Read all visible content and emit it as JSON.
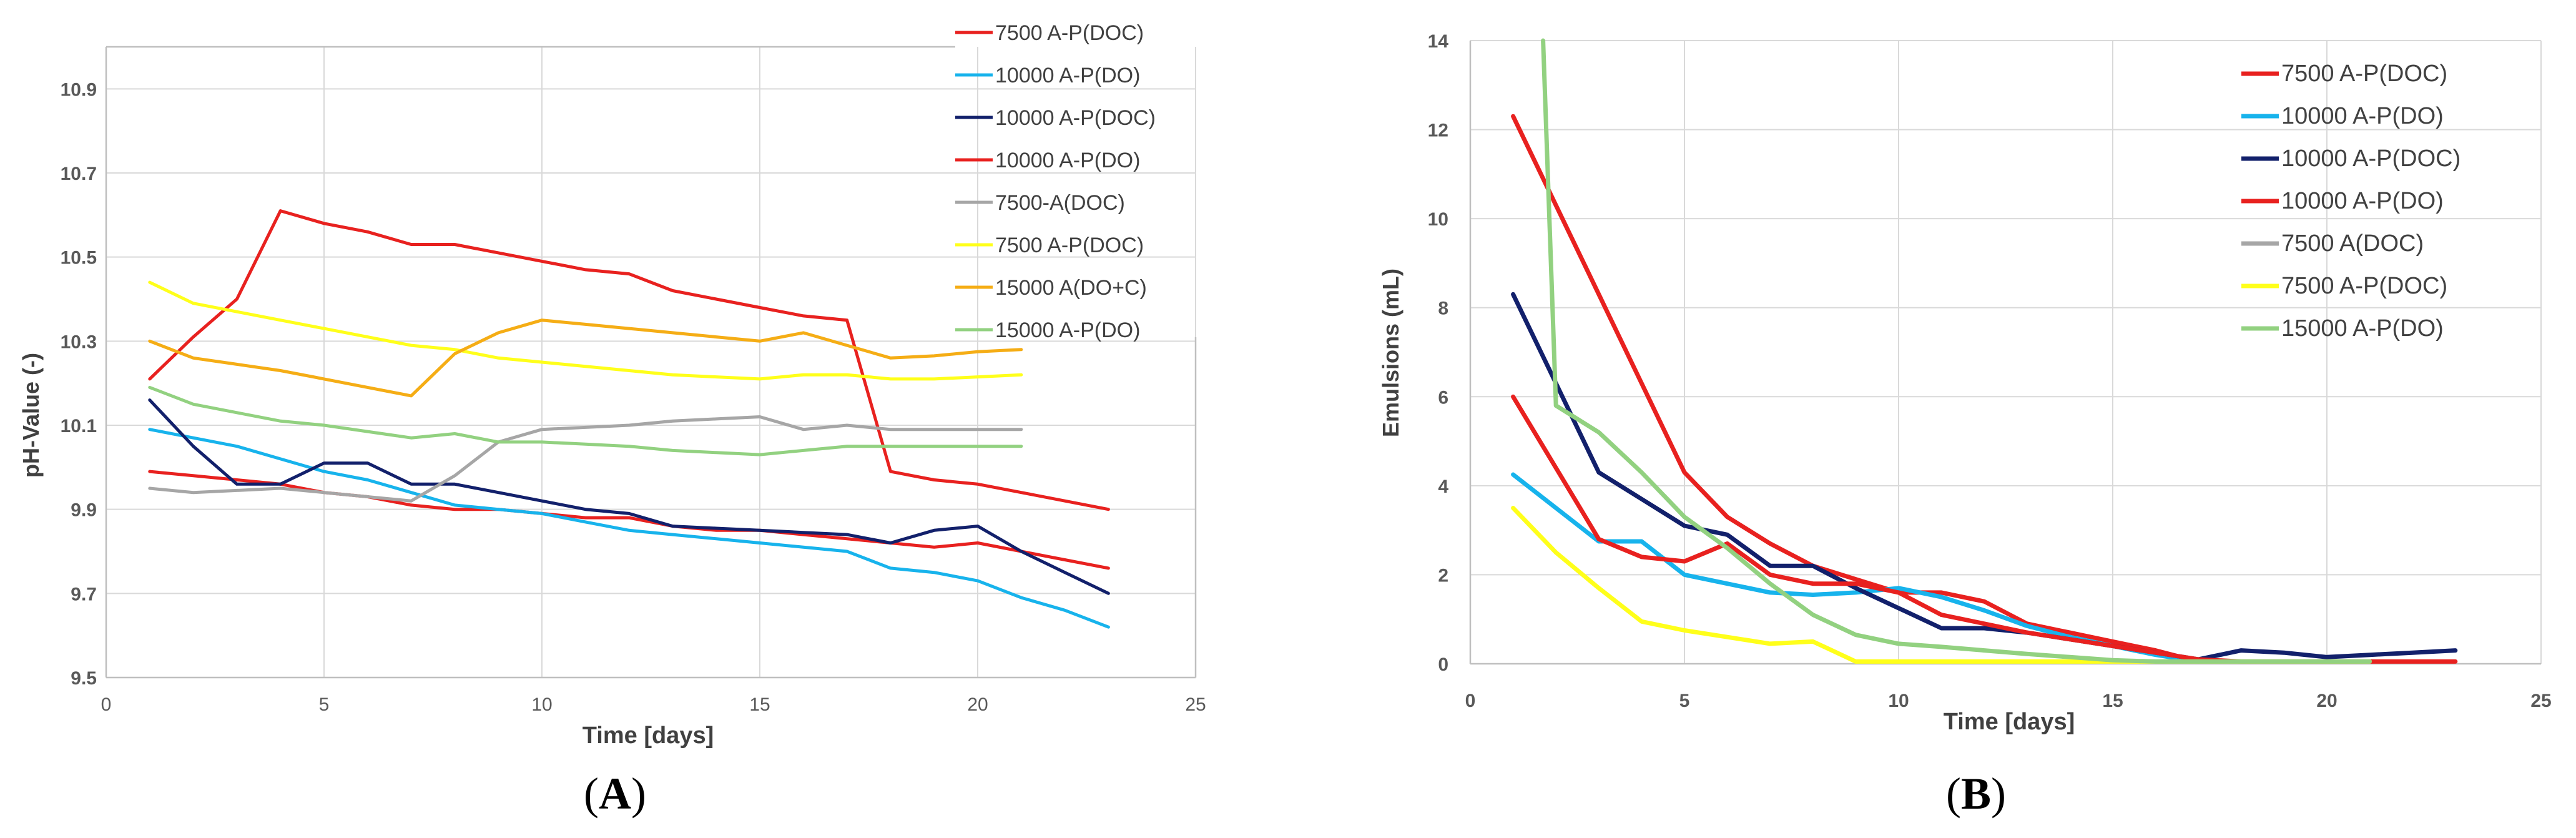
{
  "chart_data": [
    {
      "type": "line",
      "panel": "A",
      "panel_label": "A",
      "title": "",
      "xlabel": "Time [days]",
      "ylabel": "pH-Value  (-)",
      "xlim": [
        0,
        25
      ],
      "ylim": [
        9.5,
        11.0
      ],
      "x_ticks": [
        0,
        5,
        10,
        15,
        20,
        25
      ],
      "x_tick_labels": [
        "0",
        "5",
        "10",
        "15",
        "20",
        "25"
      ],
      "y_ticks": [
        9.5,
        9.7,
        9.9,
        10.1,
        10.3,
        10.5,
        10.7,
        10.9
      ],
      "y_tick_labels": [
        "9.5",
        "9.7",
        "9.9",
        "10.1",
        "10.3",
        "10.5",
        "10.7",
        "10.9"
      ],
      "grid": true,
      "legend_position": "top-right",
      "series": [
        {
          "name": "7500 A-P(DOC)",
          "color": "#e8211f",
          "x": [
            1,
            2,
            3,
            4,
            5,
            6,
            7,
            8,
            9,
            10,
            11,
            12,
            13,
            14,
            15,
            16,
            17,
            18,
            19,
            20,
            21,
            22,
            23
          ],
          "y": [
            9.99,
            9.98,
            9.97,
            9.96,
            9.94,
            9.93,
            9.91,
            9.9,
            9.9,
            9.89,
            9.88,
            9.88,
            9.86,
            9.85,
            9.85,
            9.84,
            9.83,
            9.82,
            9.81,
            9.82,
            9.8,
            9.78,
            9.76
          ]
        },
        {
          "name": "10000 A-P(DO)",
          "color": "#17b3ec",
          "x": [
            1,
            2,
            3,
            4,
            5,
            6,
            7,
            8,
            9,
            10,
            11,
            12,
            13,
            14,
            15,
            16,
            17,
            18,
            19,
            20,
            21,
            22,
            23
          ],
          "y": [
            10.09,
            10.07,
            10.05,
            10.02,
            9.99,
            9.97,
            9.94,
            9.91,
            9.9,
            9.89,
            9.87,
            9.85,
            9.84,
            9.83,
            9.82,
            9.81,
            9.8,
            9.76,
            9.75,
            9.73,
            9.69,
            9.66,
            9.62
          ]
        },
        {
          "name": "10000 A-P(DOC)",
          "color": "#12206b",
          "x": [
            1,
            2,
            3,
            4,
            5,
            6,
            7,
            8,
            9,
            10,
            11,
            12,
            13,
            14,
            15,
            16,
            17,
            18,
            19,
            20,
            21,
            22,
            23
          ],
          "y": [
            10.16,
            10.05,
            9.96,
            9.96,
            10.01,
            10.01,
            9.96,
            9.96,
            9.94,
            9.92,
            9.9,
            9.89,
            9.86,
            9.855,
            9.85,
            9.845,
            9.84,
            9.82,
            9.85,
            9.86,
            9.8,
            9.75,
            9.7
          ]
        },
        {
          "name": "10000 A-P(DO)",
          "color": "#e8211f",
          "x": [
            1,
            2,
            3,
            4,
            5,
            6,
            7,
            8,
            9,
            10,
            11,
            12,
            13,
            14,
            15,
            16,
            17,
            18,
            19,
            20,
            21,
            22,
            23
          ],
          "y": [
            10.21,
            10.31,
            10.4,
            10.61,
            10.58,
            10.56,
            10.53,
            10.53,
            10.51,
            10.49,
            10.47,
            10.46,
            10.42,
            10.4,
            10.38,
            10.36,
            10.35,
            9.99,
            9.97,
            9.96,
            9.94,
            9.92,
            9.9
          ]
        },
        {
          "name": "7500-A(DOC)",
          "color": "#a6a6a6",
          "x": [
            1,
            2,
            3,
            4,
            5,
            6,
            7,
            8,
            9,
            10,
            11,
            12,
            13,
            14,
            15,
            16,
            17,
            18,
            19,
            20,
            21
          ],
          "y": [
            9.95,
            9.94,
            9.945,
            9.95,
            9.94,
            9.93,
            9.92,
            9.98,
            10.06,
            10.09,
            10.095,
            10.1,
            10.11,
            10.115,
            10.12,
            10.09,
            10.1,
            10.09,
            10.09,
            10.09,
            10.09
          ]
        },
        {
          "name": "7500 A-P(DOC)",
          "color": "#ffff1a",
          "x": [
            1,
            2,
            3,
            4,
            5,
            6,
            7,
            8,
            9,
            10,
            11,
            12,
            13,
            14,
            15,
            16,
            17,
            18,
            19,
            20,
            21
          ],
          "y": [
            10.44,
            10.39,
            10.37,
            10.35,
            10.33,
            10.31,
            10.29,
            10.28,
            10.26,
            10.25,
            10.24,
            10.23,
            10.22,
            10.215,
            10.21,
            10.22,
            10.22,
            10.21,
            10.21,
            10.215,
            10.22
          ]
        },
        {
          "name": "15000 A(DO+C)",
          "color": "#f5ad15",
          "x": [
            1,
            2,
            3,
            4,
            5,
            6,
            7,
            8,
            9,
            10,
            11,
            12,
            13,
            14,
            15,
            16,
            17,
            18,
            19,
            20,
            21
          ],
          "y": [
            10.3,
            10.26,
            10.245,
            10.23,
            10.21,
            10.19,
            10.17,
            10.27,
            10.32,
            10.35,
            10.34,
            10.33,
            10.32,
            10.31,
            10.3,
            10.32,
            10.29,
            10.26,
            10.265,
            10.275,
            10.28
          ]
        },
        {
          "name": "15000 A-P(DO)",
          "color": "#92d180",
          "x": [
            1,
            2,
            3,
            4,
            5,
            6,
            7,
            8,
            9,
            10,
            11,
            12,
            13,
            14,
            15,
            16,
            17,
            18,
            19,
            20,
            21
          ],
          "y": [
            10.19,
            10.15,
            10.13,
            10.11,
            10.1,
            10.085,
            10.07,
            10.08,
            10.06,
            10.06,
            10.055,
            10.05,
            10.04,
            10.035,
            10.03,
            10.04,
            10.05,
            10.05,
            10.05,
            10.05,
            10.05
          ]
        }
      ]
    },
    {
      "type": "line",
      "panel": "B",
      "panel_label": "B",
      "title": "",
      "xlabel": "Time [days]",
      "ylabel": "Emulsions (mL)",
      "xlim": [
        0,
        25
      ],
      "ylim": [
        0,
        14
      ],
      "x_ticks": [
        0,
        5,
        10,
        15,
        20,
        25
      ],
      "x_tick_labels": [
        "0",
        "5",
        "10",
        "15",
        "20",
        "25"
      ],
      "y_ticks": [
        0,
        2,
        4,
        6,
        8,
        10,
        12,
        14
      ],
      "y_tick_labels": [
        "0",
        "2",
        "4",
        "6",
        "8",
        "10",
        "12",
        "14"
      ],
      "grid": true,
      "legend_position": "top-right",
      "series": [
        {
          "name": "7500 A-P(DOC)",
          "color": "#e8211f",
          "x": [
            1,
            2,
            3,
            4,
            5,
            6,
            7,
            8,
            9,
            10,
            11,
            12,
            13,
            14,
            15,
            16,
            17
          ],
          "y": [
            12.3,
            10.3,
            8.3,
            6.3,
            4.3,
            3.3,
            2.7,
            2.2,
            1.9,
            1.6,
            1.6,
            1.4,
            0.9,
            0.7,
            0.5,
            0.3,
            0.05
          ]
        },
        {
          "name": "10000 A-P(DO)",
          "color": "#17b3ec",
          "x": [
            1,
            2,
            3,
            4,
            5,
            6,
            7,
            8,
            9,
            10,
            11,
            12,
            13,
            14,
            15,
            16,
            17
          ],
          "y": [
            4.25,
            3.5,
            2.75,
            2.75,
            2.0,
            1.8,
            1.6,
            1.55,
            1.6,
            1.7,
            1.5,
            1.2,
            0.85,
            0.6,
            0.4,
            0.2,
            0.05
          ]
        },
        {
          "name": "10000 A-P(DOC)",
          "color": "#12206b",
          "x": [
            1,
            2,
            3,
            4,
            5,
            6,
            7,
            8,
            9,
            10,
            11,
            12,
            13,
            14,
            15,
            16,
            17,
            18,
            19,
            20,
            21,
            22,
            23
          ],
          "y": [
            8.3,
            6.3,
            4.3,
            3.7,
            3.1,
            2.9,
            2.2,
            2.2,
            1.7,
            1.25,
            0.8,
            0.8,
            0.7,
            0.55,
            0.4,
            0.25,
            0.1,
            0.3,
            0.25,
            0.15,
            0.2,
            0.25,
            0.3
          ]
        },
        {
          "name": "10000 A-P(DO)",
          "color": "#e8211f",
          "x": [
            1,
            2,
            3,
            4,
            5,
            6,
            7,
            8,
            9,
            10,
            11,
            12,
            13,
            14,
            15,
            16,
            17,
            18,
            19,
            20,
            21,
            22,
            23
          ],
          "y": [
            6.0,
            4.4,
            2.8,
            2.4,
            2.3,
            2.7,
            2.0,
            1.8,
            1.8,
            1.6,
            1.1,
            0.9,
            0.7,
            0.55,
            0.4,
            0.25,
            0.1,
            0.05,
            0.05,
            0.05,
            0.05,
            0.05,
            0.05
          ]
        },
        {
          "name": "7500 A(DOC)",
          "color": "#a6a6a6",
          "x": [],
          "y": []
        },
        {
          "name": "7500 A-P(DOC)",
          "color": "#ffff1a",
          "x": [
            1,
            2,
            3,
            4,
            5,
            6,
            7,
            8,
            9,
            10,
            11,
            12,
            13,
            14,
            15,
            16,
            17,
            18,
            19,
            20,
            21
          ],
          "y": [
            3.5,
            2.5,
            1.7,
            0.95,
            0.75,
            0.6,
            0.45,
            0.5,
            0.05,
            0.05,
            0.05,
            0.05,
            0.05,
            0.05,
            0.05,
            0.05,
            0.05,
            0.05,
            0.05,
            0.05,
            0.05
          ]
        },
        {
          "name": "15000 A-P(DO)",
          "color": "#92d180",
          "x": [
            1.7,
            2,
            3,
            4,
            5,
            6,
            7,
            8,
            9,
            10,
            11,
            12,
            13,
            14,
            15,
            16,
            17,
            18,
            19,
            20,
            21
          ],
          "y": [
            14.0,
            5.8,
            5.2,
            4.3,
            3.3,
            2.6,
            1.8,
            1.1,
            0.65,
            0.45,
            0.38,
            0.3,
            0.22,
            0.15,
            0.08,
            0.05,
            0.05,
            0.05,
            0.05,
            0.05,
            0.05
          ]
        }
      ]
    }
  ]
}
